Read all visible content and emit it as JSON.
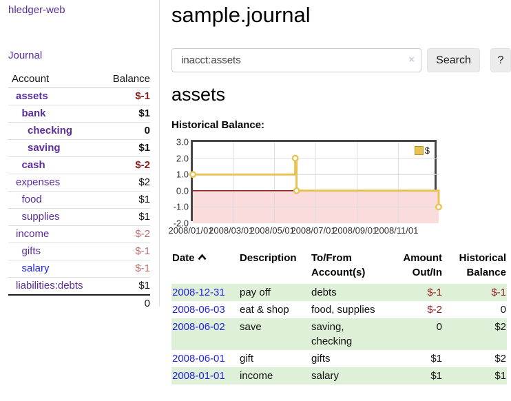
{
  "app_title": "hledger-web",
  "nav": {
    "journal": "Journal"
  },
  "sidebar": {
    "col_account": "Account",
    "col_balance": "Balance",
    "accounts": [
      {
        "name": "assets",
        "balance": "$-1",
        "level": 0,
        "bold": true,
        "name_style": "purple",
        "bal_style": "neg"
      },
      {
        "name": "bank",
        "balance": "$1",
        "level": 1,
        "bold": true,
        "name_style": "purple",
        "bal_style": "pos"
      },
      {
        "name": "checking",
        "balance": "0",
        "level": 2,
        "bold": true,
        "name_style": "purple",
        "bal_style": "pos"
      },
      {
        "name": "saving",
        "balance": "$1",
        "level": 2,
        "bold": true,
        "name_style": "purple",
        "bal_style": "pos"
      },
      {
        "name": "cash",
        "balance": "$-2",
        "level": 1,
        "bold": true,
        "name_style": "purple",
        "bal_style": "neg"
      },
      {
        "name": "expenses",
        "balance": "$2",
        "level": 0,
        "bold": false,
        "name_style": "purple",
        "bal_style": "pos"
      },
      {
        "name": "food",
        "balance": "$1",
        "level": 1,
        "bold": false,
        "name_style": "purple",
        "bal_style": "pos"
      },
      {
        "name": "supplies",
        "balance": "$1",
        "level": 1,
        "bold": false,
        "name_style": "purple",
        "bal_style": "pos"
      },
      {
        "name": "income",
        "balance": "$-2",
        "level": 0,
        "bold": false,
        "name_style": "purple",
        "bal_style": "rose"
      },
      {
        "name": "gifts",
        "balance": "$-1",
        "level": 1,
        "bold": false,
        "name_style": "purple",
        "bal_style": "rose"
      },
      {
        "name": "salary",
        "balance": "$-1",
        "level": 1,
        "bold": false,
        "name_style": "blue",
        "bal_style": "rose"
      },
      {
        "name": "liabilities:debts",
        "balance": "$1",
        "level": 0,
        "bold": false,
        "name_style": "purple",
        "bal_style": "pos"
      }
    ],
    "total": "0"
  },
  "main": {
    "title": "sample.journal",
    "search": {
      "value": "inacct:assets",
      "clear": "×",
      "search_button": "Search",
      "help_button": "?"
    },
    "heading": "assets",
    "chart_title": "Historical Balance:"
  },
  "chart_data": {
    "type": "line",
    "step": true,
    "title": "Historical Balance",
    "legend": [
      {
        "label": "$",
        "color": "#E8C252"
      }
    ],
    "legend_position": "top-right",
    "grid": true,
    "x_range": [
      "2008-01-01",
      "2008-12-31"
    ],
    "ylim": [
      -2,
      3
    ],
    "y_ticks": [
      "3.0",
      "2.0",
      "1.0",
      "0.0",
      "-1.0",
      "-2.0"
    ],
    "x_ticks": [
      {
        "label": "2008/01/01",
        "date": "2008-01-01"
      },
      {
        "label": "2008/03/01",
        "date": "2008-03-01"
      },
      {
        "label": "2008/05/01",
        "date": "2008-05-01"
      },
      {
        "label": "2008/07/01",
        "date": "2008-07-01"
      },
      {
        "label": "2008/09/01",
        "date": "2008-09-01"
      },
      {
        "label": "2008/11/01",
        "date": "2008-11-01"
      }
    ],
    "series": [
      {
        "name": "$",
        "color": "#E8C252",
        "points": [
          {
            "date": "2008-01-01",
            "value": 1
          },
          {
            "date": "2008-06-01",
            "value": 2
          },
          {
            "date": "2008-06-03",
            "value": 0
          },
          {
            "date": "2008-12-31",
            "value": -1
          }
        ]
      }
    ],
    "negative_region_color": "#FBDCDC",
    "zero_line_color": "#8B0000",
    "gridline_color": "#DCDCDC"
  },
  "register": {
    "headers": {
      "date": "Date",
      "description": "Description",
      "accounts": "To/From Account(s)",
      "amount": "Amount Out/In",
      "balance": "Historical Balance"
    },
    "rows": [
      {
        "date": "2008-12-31",
        "description": "pay off",
        "accounts": "debts",
        "amount": "$-1",
        "balance": "$-1",
        "amount_neg": true,
        "balance_neg": true,
        "shaded": true
      },
      {
        "date": "2008-06-03",
        "description": "eat & shop",
        "accounts": "food, supplies",
        "amount": "$-2",
        "balance": "0",
        "amount_neg": true,
        "balance_neg": false,
        "shaded": false
      },
      {
        "date": "2008-06-02",
        "description": "save",
        "accounts": "saving, checking",
        "amount": "0",
        "balance": "$2",
        "amount_neg": false,
        "balance_neg": false,
        "shaded": true
      },
      {
        "date": "2008-06-01",
        "description": "gift",
        "accounts": "gifts",
        "amount": "$1",
        "balance": "$2",
        "amount_neg": false,
        "balance_neg": false,
        "shaded": false
      },
      {
        "date": "2008-01-01",
        "description": "income",
        "accounts": "salary",
        "amount": "$1",
        "balance": "$1",
        "amount_neg": false,
        "balance_neg": false,
        "shaded": true
      }
    ]
  }
}
